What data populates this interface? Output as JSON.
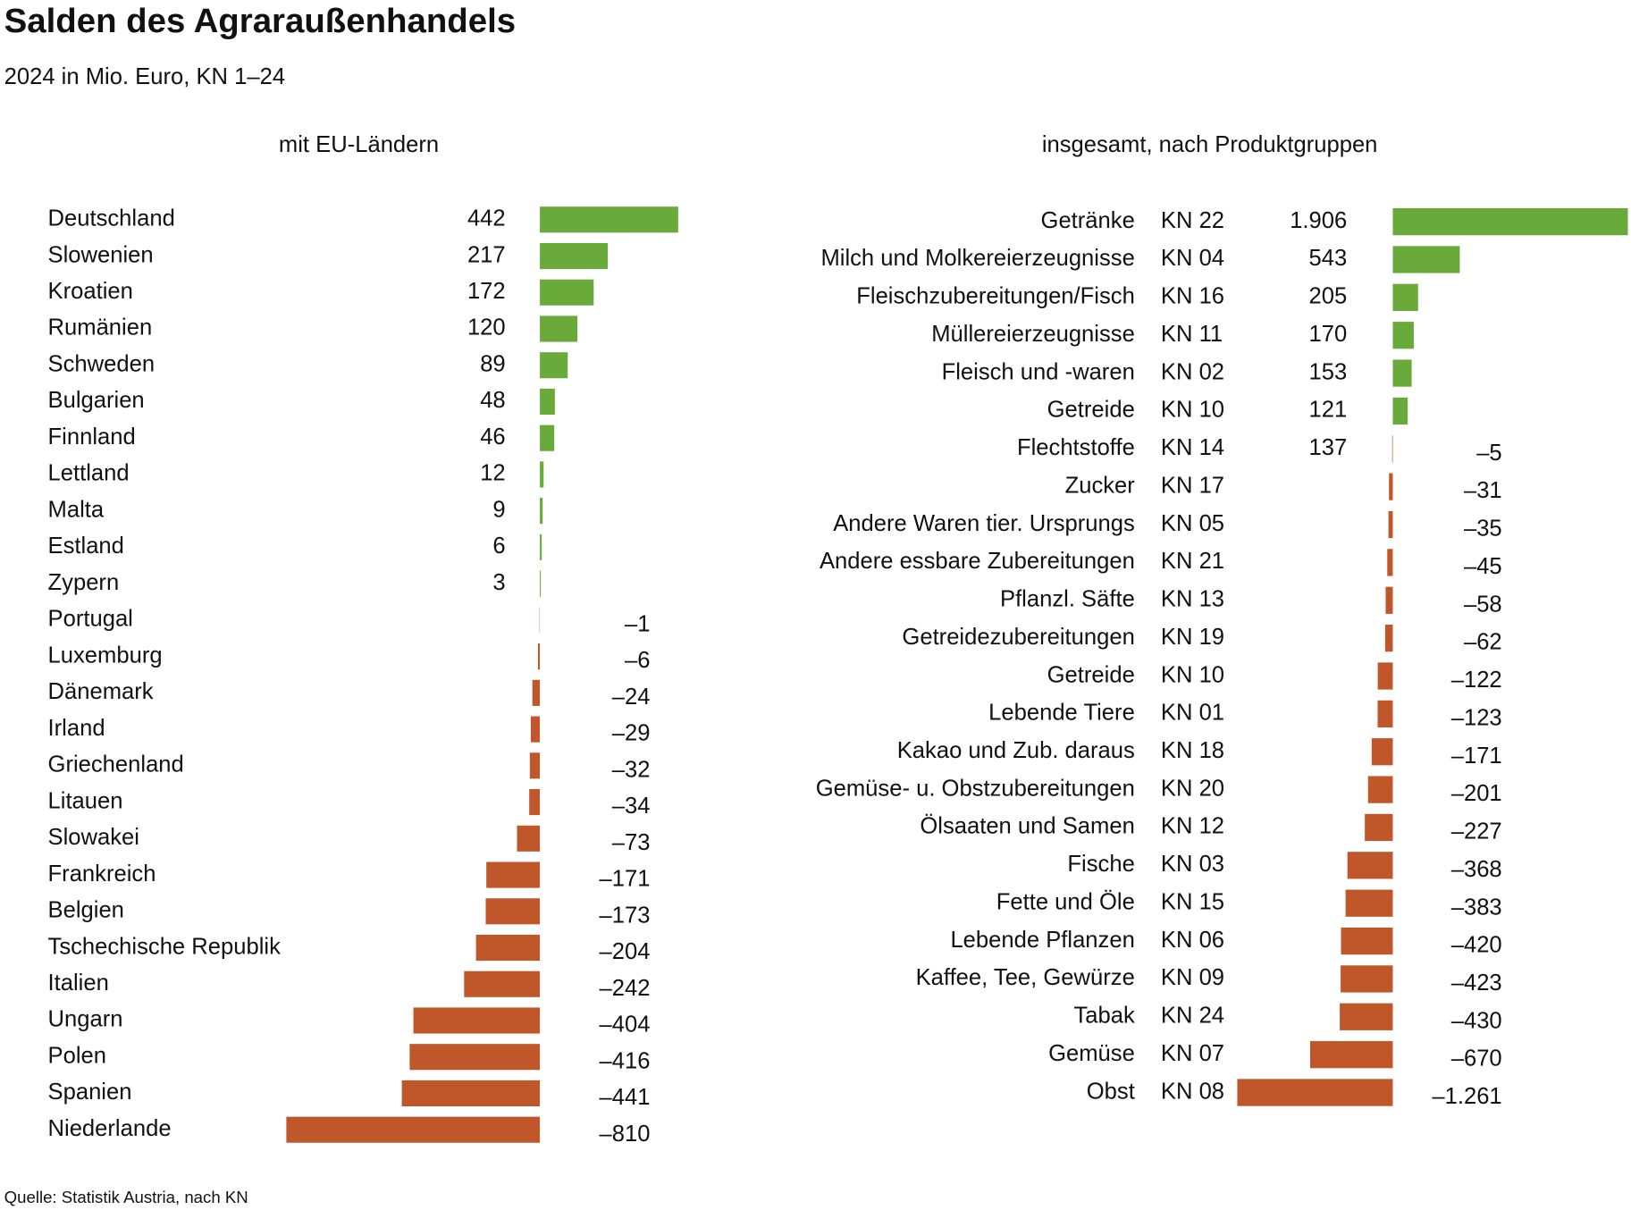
{
  "title": "Salden des Agraraußenhandels",
  "subtitle": "2024 in Mio. Euro, KN 1–24",
  "source": "Quelle: Statistik Austria, nach KN",
  "chart_data": [
    {
      "type": "bar",
      "orientation": "horizontal",
      "title": "mit EU-Ländern",
      "categories": [
        "Deutschland",
        "Slowenien",
        "Kroatien",
        "Rumänien",
        "Schweden",
        "Bulgarien",
        "Finnland",
        "Lettland",
        "Malta",
        "Estland",
        "Zypern",
        "Portugal",
        "Luxemburg",
        "Dänemark",
        "Irland",
        "Griechenland",
        "Litauen",
        "Slowakei",
        "Frankreich",
        "Belgien",
        "Tschechische Republik",
        "Italien",
        "Ungarn",
        "Polen",
        "Spanien",
        "Niederlande"
      ],
      "values": [
        442,
        217,
        172,
        120,
        89,
        48,
        46,
        12,
        9,
        6,
        3,
        -1,
        -6,
        -24,
        -29,
        -32,
        -34,
        -73,
        -171,
        -173,
        -204,
        -242,
        -404,
        -416,
        -441,
        -810
      ],
      "value_labels": [
        "442",
        "217",
        "172",
        "120",
        "89",
        "48",
        "46",
        "12",
        "9",
        "6",
        "3",
        "–1",
        "–6",
        "–24",
        "–29",
        "–32",
        "–34",
        "–73",
        "–171",
        "–173",
        "–204",
        "–242",
        "–404",
        "–416",
        "–441",
        "–810"
      ],
      "positive_color": "#6aaa3a",
      "negative_color": "#c0572a"
    },
    {
      "type": "bar",
      "orientation": "horizontal",
      "title": "insgesamt, nach Produktgruppen",
      "categories": [
        "Getränke",
        "Milch und Molkereierzeugnisse",
        "Fleischzubereitungen/Fisch",
        "Müllereierzeugnisse",
        "Fleisch und -waren",
        "Getreide",
        "Flechtstoffe",
        "Zucker",
        "Andere Waren tier. Ursprungs",
        "Andere essbare Zubereitungen",
        "Pflanzl. Säfte",
        "Getreidezubereitungen",
        "Getreide",
        "Lebende Tiere",
        "Kakao und Zub. daraus",
        "Gemüse- u. Obstzubereitungen",
        "Ölsaaten und Samen",
        "Fische",
        "Fette und Öle",
        "Lebende Pflanzen",
        "Kaffee, Tee, Gewürze",
        "Tabak",
        "Gemüse",
        "Obst"
      ],
      "codes": [
        "KN 22",
        "KN 04",
        "KN 16",
        "KN 11",
        "KN 02",
        "KN 10",
        "KN 14",
        "KN 17",
        "KN 05",
        "KN 21",
        "KN 13",
        "KN 19",
        "KN 10",
        "KN 01",
        "KN 18",
        "KN 20",
        "KN 12",
        "KN 03",
        "KN 15",
        "KN 06",
        "KN 09",
        "KN 24",
        "KN 07",
        "KN 08"
      ],
      "values": [
        1906,
        543,
        205,
        170,
        153,
        121,
        -5,
        -31,
        -35,
        -45,
        -58,
        -62,
        -122,
        -123,
        -171,
        -201,
        -227,
        -368,
        -383,
        -420,
        -423,
        -430,
        -670,
        -1261
      ],
      "value_labels": [
        "1.906",
        "543",
        "205",
        "170",
        "153",
        "121",
        "–5",
        "–31",
        "–35",
        "–45",
        "–58",
        "–62",
        "–122",
        "–123",
        "–171",
        "–201",
        "–227",
        "–368",
        "–383",
        "–420",
        "–423",
        "–430",
        "–670",
        "–1.261"
      ],
      "annotation": "137",
      "positive_color": "#6aaa3a",
      "negative_color": "#c0572a"
    }
  ]
}
